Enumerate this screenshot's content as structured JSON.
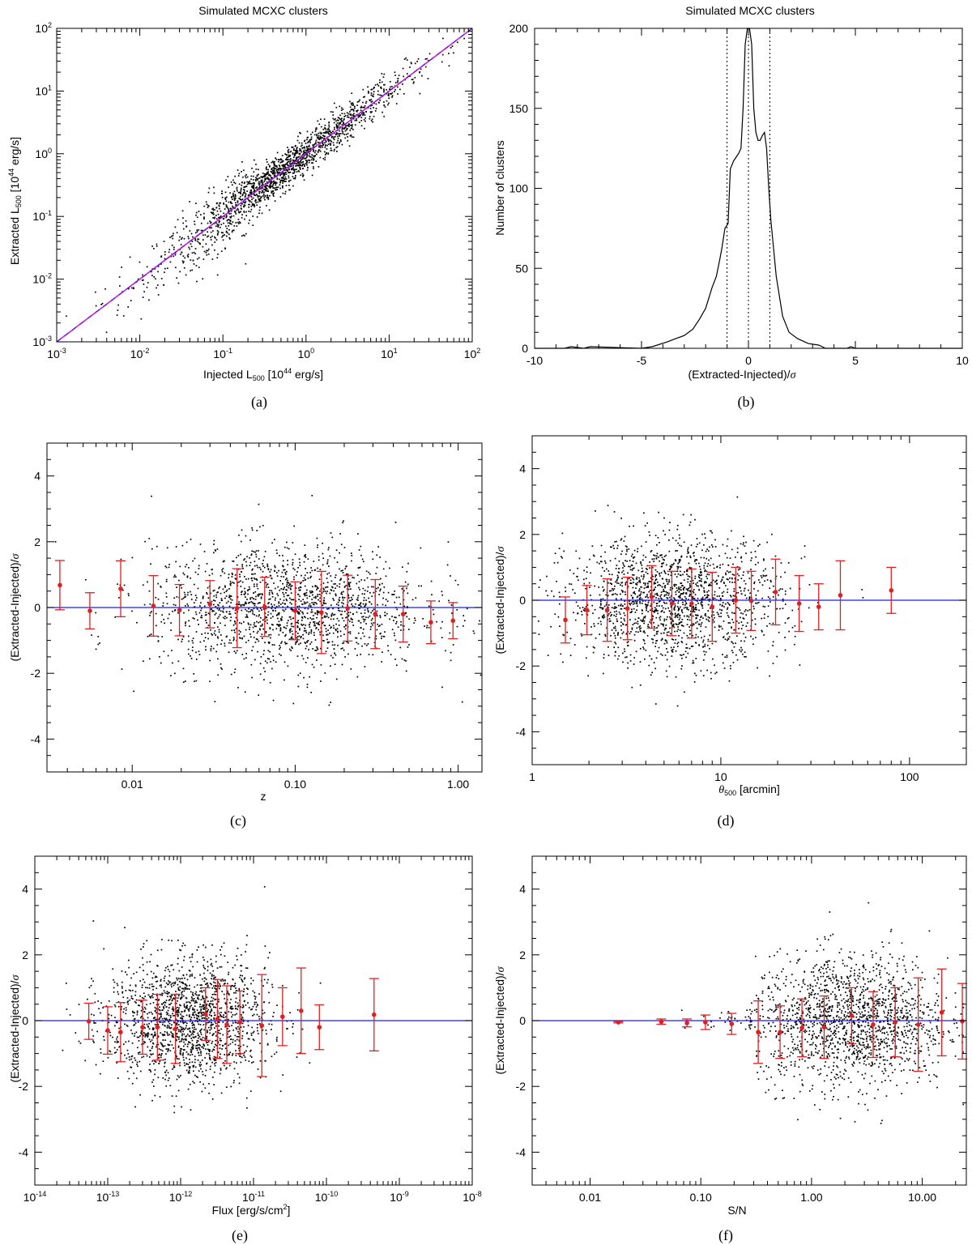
{
  "colors": {
    "axis": "#000000",
    "fit_line": "#1a1aff",
    "identity_line": "#d11fd1",
    "points": "#000000",
    "bins": "#e02020"
  },
  "chart_data": [
    {
      "id": "a",
      "type": "scatter",
      "caption": "(a)",
      "title": "Simulated MCXC clusters",
      "xlabel": "Injected L500 [10^44 erg/s]",
      "ylabel": "Extracted L500 [10^44 erg/s]",
      "xscale": "log",
      "yscale": "log",
      "xlim": [
        0.001,
        100
      ],
      "ylim": [
        0.001,
        100
      ],
      "x_tick_values": [
        0.001,
        0.01,
        0.1,
        1,
        10,
        100
      ],
      "y_tick_values": [
        0.001,
        0.01,
        0.1,
        1,
        10,
        100
      ],
      "reference_lines": [
        {
          "name": "one-to-one",
          "x": [
            0.001,
            100
          ],
          "y": [
            0.001,
            100
          ]
        }
      ],
      "scatter_note": "about 1700 clusters tightly along the one-to-one line, scatter about 0.2 dex, mostly between 0.05 and 20"
    },
    {
      "id": "b",
      "type": "line",
      "caption": "(b)",
      "title": "Simulated MCXC clusters",
      "xlabel": "(Extracted-Injected)/σ",
      "ylabel": "Number of clusters",
      "xlim": [
        -10,
        10
      ],
      "ylim": [
        0,
        200
      ],
      "x_tick_labels": [
        "-10",
        "-5",
        "0",
        "5",
        "10"
      ],
      "y_tick_labels": [
        "0",
        "50",
        "100",
        "150",
        "200"
      ],
      "vlines": [
        -1,
        0,
        1
      ],
      "series": [
        {
          "name": "histogram",
          "x": [
            -10,
            -8.6,
            -8.3,
            -7.7,
            -7.4,
            -5,
            -4.5,
            -3.8,
            -3.4,
            -3.0,
            -2.6,
            -2.3,
            -2.0,
            -1.7,
            -1.5,
            -1.35,
            -1.25,
            -1.1,
            -0.95,
            -0.85,
            -0.7,
            -0.55,
            -0.45,
            -0.35,
            -0.25,
            -0.15,
            -0.05,
            0.05,
            0.15,
            0.25,
            0.35,
            0.45,
            0.55,
            0.65,
            0.75,
            0.85,
            0.95,
            1.05,
            1.3,
            1.6,
            1.9,
            2.3,
            2.8,
            3.3,
            3.6,
            4.6,
            4.8,
            5.0,
            10
          ],
          "y": [
            0,
            0,
            1,
            0,
            1,
            0,
            1,
            4,
            6,
            8,
            12,
            18,
            25,
            38,
            45,
            55,
            62,
            75,
            78,
            112,
            117,
            120,
            122,
            125,
            150,
            190,
            200,
            200,
            190,
            150,
            135,
            130,
            130,
            133,
            135,
            125,
            100,
            80,
            45,
            20,
            10,
            6,
            3,
            2,
            0,
            0,
            1,
            0,
            0
          ]
        }
      ]
    },
    {
      "id": "c",
      "type": "scatter",
      "caption": "(c)",
      "xlabel": "z",
      "ylabel": "(Extracted-Injected)/σ",
      "xscale": "log",
      "xlim": [
        0.003,
        1.4
      ],
      "ylim": [
        -5,
        5
      ],
      "x_tick_values": [
        0.01,
        0.1,
        1
      ],
      "x_tick_labels": [
        "0.01",
        "0.10",
        "1.00"
      ],
      "y_tick_labels": [
        "-4",
        "-2",
        "0",
        "2",
        "4"
      ],
      "scatter_note": "cloud concentrated at z 0.03 to 0.6, spread roughly -3.4 to 3.5",
      "binned": {
        "x": [
          0.0036,
          0.0055,
          0.0085,
          0.0135,
          0.0195,
          0.03,
          0.044,
          0.065,
          0.1,
          0.145,
          0.21,
          0.31,
          0.46,
          0.68,
          0.93
        ],
        "mean": [
          0.68,
          -0.1,
          0.57,
          0.05,
          -0.08,
          0.1,
          -0.02,
          0.02,
          -0.1,
          -0.15,
          -0.02,
          -0.2,
          -0.2,
          -0.45,
          -0.4
        ],
        "std": [
          0.75,
          0.55,
          0.85,
          0.92,
          0.78,
          0.72,
          1.2,
          0.9,
          0.88,
          1.25,
          1.0,
          1.05,
          0.85,
          0.65,
          0.55
        ]
      }
    },
    {
      "id": "d",
      "type": "scatter",
      "caption": "(d)",
      "xlabel": "θ500 [arcmin]",
      "ylabel": "(Extracted-Injected)/σ",
      "xscale": "log",
      "xlim": [
        1,
        200
      ],
      "ylim": [
        -5,
        5
      ],
      "x_tick_values": [
        1,
        10,
        100
      ],
      "x_tick_labels": [
        "1",
        "10",
        "100"
      ],
      "y_tick_labels": [
        "-4",
        "-2",
        "0",
        "2",
        "4"
      ],
      "scatter_note": "cloud concentrated at theta 2 to 20 arcmin, spread roughly -3.5 to 3.5",
      "binned": {
        "x": [
          1.5,
          1.95,
          2.5,
          3.2,
          4.3,
          5.5,
          7.0,
          9.0,
          12,
          14.5,
          19.5,
          26,
          33,
          43,
          80
        ],
        "mean": [
          -0.6,
          -0.3,
          -0.3,
          -0.25,
          0.1,
          -0.1,
          -0.1,
          -0.2,
          0.0,
          -0.02,
          0.25,
          -0.1,
          -0.2,
          0.15,
          0.3
        ],
        "std": [
          0.7,
          0.75,
          0.95,
          0.95,
          0.95,
          0.98,
          1.05,
          1.05,
          1.0,
          0.9,
          1.0,
          0.85,
          0.7,
          1.05,
          0.7
        ]
      }
    },
    {
      "id": "e",
      "type": "scatter",
      "caption": "(e)",
      "xlabel": "Flux [erg/s/cm2]",
      "ylabel": "(Extracted-Injected)/σ",
      "xscale": "log",
      "xlim": [
        1e-14,
        1e-08
      ],
      "ylim": [
        -5,
        5
      ],
      "x_tick_values": [
        1e-14,
        1e-13,
        1e-12,
        1e-11,
        1e-10,
        1e-09,
        1e-08
      ],
      "x_tick_labels": [
        "10-14",
        "10-13",
        "10-12",
        "10-11",
        "10-10",
        "10-9",
        "10-8"
      ],
      "y_tick_labels": [
        "-4",
        "-2",
        "0",
        "2",
        "4"
      ],
      "scatter_note": "cloud concentrated at flux 1e-13 to 3e-11, spread roughly -3.5 to 3.5",
      "binned": {
        "x": [
          5.5e-14,
          1e-13,
          1.5e-13,
          3e-13,
          4.8e-13,
          8.5e-13,
          2.2e-12,
          3.2e-12,
          4.3e-12,
          6.5e-12,
          1.3e-11,
          2.5e-11,
          4.5e-11,
          8e-11,
          4.5e-10
        ],
        "mean": [
          -0.02,
          -0.3,
          -0.35,
          -0.2,
          -0.2,
          -0.25,
          0.2,
          0.05,
          -0.12,
          -0.05,
          -0.15,
          0.12,
          0.3,
          -0.2,
          0.18
        ],
        "std": [
          0.55,
          0.72,
          0.9,
          0.82,
          1.0,
          1.05,
          0.8,
          1.2,
          1.18,
          0.95,
          1.55,
          0.88,
          1.3,
          0.68,
          1.1
        ]
      }
    },
    {
      "id": "f",
      "type": "scatter",
      "caption": "(f)",
      "xlabel": "S/N",
      "ylabel": "(Extracted-Injected)/σ",
      "xscale": "log",
      "xlim": [
        0.003,
        25
      ],
      "ylim": [
        -5,
        5
      ],
      "x_tick_values": [
        0.01,
        0.1,
        1,
        10
      ],
      "x_tick_labels": [
        "0.01",
        "0.10",
        "1.00",
        "10.00"
      ],
      "y_tick_labels": [
        "-4",
        "-2",
        "0",
        "2",
        "4"
      ],
      "scatter_note": "points near zero at low S/N, cloud widens above S/N 0.3, spread roughly -3.4 to 3.4",
      "binned": {
        "x": [
          0.018,
          0.044,
          0.075,
          0.11,
          0.19,
          0.33,
          0.52,
          0.82,
          1.3,
          2.3,
          3.6,
          5.7,
          9.2,
          15,
          23
        ],
        "mean": [
          -0.05,
          -0.03,
          -0.07,
          -0.05,
          -0.1,
          -0.35,
          -0.35,
          -0.22,
          -0.2,
          0.15,
          -0.12,
          -0.05,
          -0.12,
          0.25,
          -0.02
        ],
        "std": [
          0.02,
          0.08,
          0.12,
          0.22,
          0.32,
          0.95,
          0.8,
          0.88,
          0.95,
          0.85,
          1.0,
          1.05,
          1.42,
          1.32,
          1.15
        ]
      }
    }
  ]
}
